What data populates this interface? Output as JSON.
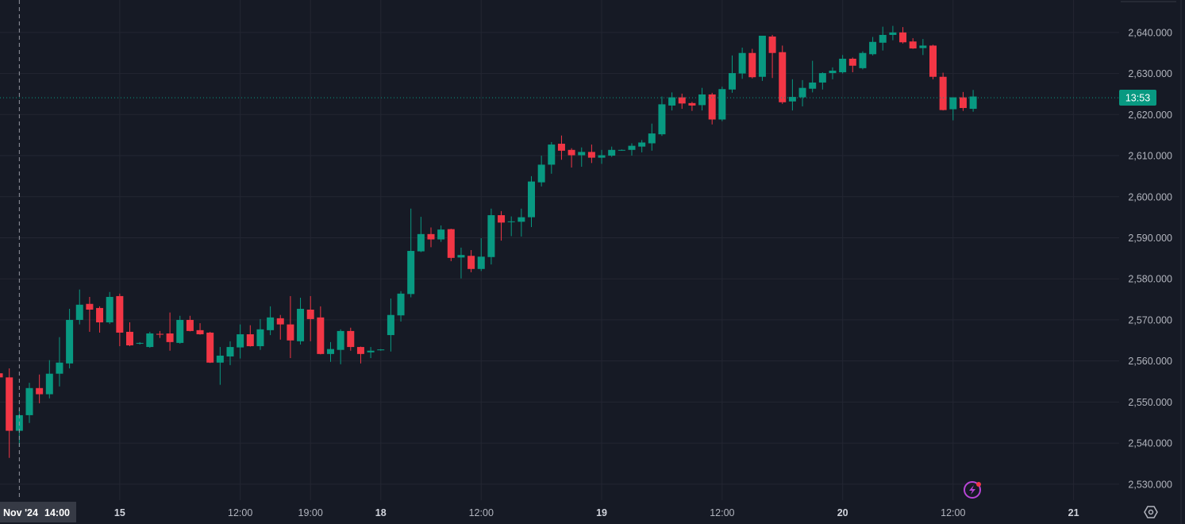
{
  "chart_data": {
    "type": "candlestick",
    "title": "",
    "xlabel": "",
    "ylabel": "",
    "ylim": [
      2526.1,
      2647.9
    ],
    "grid": true,
    "interval": "1h",
    "colors": {
      "up": "#089981",
      "down": "#f23645",
      "grid": "#232632",
      "text": "#b2b5be",
      "background": "#161a25",
      "crosshair_label_bg": "#363a45",
      "alert_icon": "#b845d6",
      "alert_dot": "#f23645"
    },
    "fields": [
      "open",
      "high",
      "low",
      "close"
    ],
    "candles": [
      [
        2557,
        2558,
        2555,
        2556
      ],
      [
        2556,
        2558.2,
        2536.4,
        2543
      ],
      [
        2543,
        2548.4,
        2539.1,
        2546.8
      ],
      [
        2546.8,
        2554.7,
        2544.9,
        2553.4
      ],
      [
        2553.4,
        2556.7,
        2549.7,
        2551.9
      ],
      [
        2551.9,
        2560.2,
        2550.9,
        2556.9
      ],
      [
        2556.9,
        2565.8,
        2553.8,
        2559.6
      ],
      [
        2559.4,
        2572.7,
        2558.2,
        2570
      ],
      [
        2570,
        2577.4,
        2568.9,
        2573.7
      ],
      [
        2573.9,
        2575.6,
        2567.1,
        2572.5
      ],
      [
        2572.9,
        2573.3,
        2566.9,
        2569.4
      ],
      [
        2569.4,
        2576.8,
        2569,
        2575.6
      ],
      [
        2575.8,
        2576.4,
        2563.6,
        2566.9
      ],
      [
        2567.1,
        2569.4,
        2563.6,
        2563.8
      ],
      [
        2564.2,
        2564.6,
        2564,
        2564.4
      ],
      [
        2563.4,
        2567.1,
        2563.2,
        2566.7
      ],
      [
        2566.6,
        2567.3,
        2565.6,
        2566.4
      ],
      [
        2566.7,
        2571.8,
        2562.5,
        2564.6
      ],
      [
        2564.4,
        2571,
        2564.2,
        2570
      ],
      [
        2570,
        2571,
        2567.2,
        2567.3
      ],
      [
        2567.5,
        2569.2,
        2566.4,
        2566.5
      ],
      [
        2566.9,
        2567.1,
        2559.5,
        2559.6
      ],
      [
        2559.6,
        2563.4,
        2554.2,
        2561.3
      ],
      [
        2561.1,
        2564.8,
        2559,
        2563.4
      ],
      [
        2563.3,
        2568.9,
        2560.6,
        2566.5
      ],
      [
        2566.5,
        2568.7,
        2563.5,
        2563.6
      ],
      [
        2563.6,
        2570.2,
        2562.7,
        2567.7
      ],
      [
        2567.5,
        2573.3,
        2566.3,
        2570.6
      ],
      [
        2570.4,
        2571.2,
        2565.2,
        2568.9
      ],
      [
        2568.9,
        2575.8,
        2560.7,
        2565
      ],
      [
        2564.8,
        2575.4,
        2564,
        2572.7
      ],
      [
        2572.5,
        2575.8,
        2564.8,
        2570.2
      ],
      [
        2570.6,
        2573.3,
        2561.6,
        2561.7
      ],
      [
        2561.7,
        2564.6,
        2559.8,
        2562.9
      ],
      [
        2562.7,
        2567.7,
        2559.2,
        2567.3
      ],
      [
        2567.3,
        2568.1,
        2562.5,
        2563.4
      ],
      [
        2563.4,
        2563.5,
        2559.4,
        2561.7
      ],
      [
        2562.1,
        2563.4,
        2560.7,
        2562.5
      ],
      [
        2562.6,
        2562.9,
        2562.5,
        2562.8
      ],
      [
        2566.3,
        2575.2,
        2562.3,
        2571.2
      ],
      [
        2571.1,
        2577,
        2569.6,
        2576.4
      ],
      [
        2576.3,
        2597.1,
        2575.5,
        2586.8
      ],
      [
        2586.7,
        2595.1,
        2586.5,
        2590.9
      ],
      [
        2590.9,
        2592.5,
        2587.7,
        2589.6
      ],
      [
        2589.6,
        2593,
        2589,
        2592
      ],
      [
        2592.1,
        2592.2,
        2584.3,
        2585.1
      ],
      [
        2585.2,
        2587.6,
        2580.1,
        2585.8
      ],
      [
        2585.6,
        2587,
        2581.6,
        2582.4
      ],
      [
        2582.4,
        2589.9,
        2581.9,
        2585.4
      ],
      [
        2585.3,
        2597.1,
        2583.5,
        2595.5
      ],
      [
        2595.5,
        2596.5,
        2589.3,
        2593.7
      ],
      [
        2593.8,
        2595.2,
        2590.4,
        2594
      ],
      [
        2593.9,
        2597.1,
        2590.3,
        2595
      ],
      [
        2595,
        2605,
        2592.6,
        2603.7
      ],
      [
        2603.5,
        2610,
        2602.5,
        2607.8
      ],
      [
        2607.8,
        2613.3,
        2605.6,
        2612.7
      ],
      [
        2612.9,
        2614.9,
        2609,
        2611.2
      ],
      [
        2611.4,
        2611.8,
        2607.1,
        2610.1
      ],
      [
        2610.1,
        2612,
        2607.3,
        2610.9
      ],
      [
        2610.9,
        2612.7,
        2608.2,
        2609.5
      ],
      [
        2609.5,
        2611.4,
        2608,
        2610.1
      ],
      [
        2610,
        2612.2,
        2609.7,
        2611.4
      ],
      [
        2611.3,
        2611.5,
        2611.2,
        2611.4
      ],
      [
        2611.4,
        2613,
        2610,
        2612.4
      ],
      [
        2612.2,
        2613.8,
        2610.8,
        2613.2
      ],
      [
        2613,
        2617.8,
        2611.2,
        2615.4
      ],
      [
        2615.2,
        2624.4,
        2614.8,
        2622.5
      ],
      [
        2622.2,
        2625.4,
        2621,
        2624.2
      ],
      [
        2624.2,
        2625.1,
        2621.4,
        2622.7
      ],
      [
        2622.8,
        2623.1,
        2620.9,
        2622.2
      ],
      [
        2622.3,
        2626.5,
        2621,
        2624.9
      ],
      [
        2624.9,
        2625.3,
        2617.6,
        2618.8
      ],
      [
        2618.8,
        2626.8,
        2618.4,
        2626.2
      ],
      [
        2626.1,
        2634.4,
        2625.3,
        2630.1
      ],
      [
        2630,
        2636.3,
        2628.7,
        2635
      ],
      [
        2635,
        2636,
        2628.8,
        2629.1
      ],
      [
        2629.2,
        2639.2,
        2628.2,
        2639.2
      ],
      [
        2639,
        2639.4,
        2628.9,
        2635
      ],
      [
        2635.2,
        2636.8,
        2622.6,
        2623
      ],
      [
        2623.2,
        2628.6,
        2621,
        2624.3
      ],
      [
        2624.2,
        2628.4,
        2622,
        2626.5
      ],
      [
        2626.3,
        2633.1,
        2625.4,
        2627.8
      ],
      [
        2627.8,
        2630.3,
        2626.1,
        2630.1
      ],
      [
        2630.1,
        2631.5,
        2628.6,
        2630.7
      ],
      [
        2630.3,
        2634.5,
        2630,
        2633.6
      ],
      [
        2633.6,
        2633.9,
        2630.3,
        2631.9
      ],
      [
        2631.3,
        2635.4,
        2631,
        2635
      ],
      [
        2634.7,
        2638.9,
        2634.4,
        2637.7
      ],
      [
        2637.5,
        2641.4,
        2635.6,
        2639.4
      ],
      [
        2639.4,
        2641.6,
        2638.1,
        2640
      ],
      [
        2640,
        2641.3,
        2637.3,
        2637.6
      ],
      [
        2637.8,
        2638.6,
        2636,
        2636.1
      ],
      [
        2636.2,
        2638.4,
        2634.5,
        2636.8
      ],
      [
        2636.8,
        2637,
        2628.6,
        2629.2
      ],
      [
        2629.2,
        2630.2,
        2621,
        2621.1
      ],
      [
        2621.3,
        2624.2,
        2618.6,
        2624.2
      ],
      [
        2624.2,
        2625.5,
        2620.9,
        2621.6
      ],
      [
        2621.4,
        2626,
        2620.7,
        2624.4
      ]
    ],
    "y_ticks": [
      {
        "value": 2640,
        "label": "2,640.000"
      },
      {
        "value": 2630,
        "label": "2,630.000"
      },
      {
        "value": 2620,
        "label": "2,620.000"
      },
      {
        "value": 2610,
        "label": "2,610.000"
      },
      {
        "value": 2600,
        "label": "2,600.000"
      },
      {
        "value": 2590,
        "label": "2,590.000"
      },
      {
        "value": 2580,
        "label": "2,580.000"
      },
      {
        "value": 2570,
        "label": "2,570.000"
      },
      {
        "value": 2560,
        "label": "2,560.000"
      },
      {
        "value": 2550,
        "label": "2,550.000"
      },
      {
        "value": 2540,
        "label": "2,540.000"
      },
      {
        "value": 2530,
        "label": "2,530.000"
      }
    ],
    "x_ticks": [
      {
        "bar": 12,
        "label": "15",
        "day": true
      },
      {
        "bar": 24,
        "label": "12:00",
        "day": false
      },
      {
        "bar": 31,
        "label": "19:00",
        "day": false
      },
      {
        "bar": 38,
        "label": "18",
        "day": true
      },
      {
        "bar": 48,
        "label": "12:00",
        "day": false
      },
      {
        "bar": 60,
        "label": "19",
        "day": true
      },
      {
        "bar": 72,
        "label": "12:00",
        "day": false
      },
      {
        "bar": 84,
        "label": "20",
        "day": true
      },
      {
        "bar": 95,
        "label": "12:00",
        "day": false
      },
      {
        "bar": 107,
        "label": "21",
        "day": true
      }
    ],
    "crosshair": {
      "bar": 2,
      "date_label": "Nov '24",
      "time_label": "14:00"
    },
    "current_price": {
      "value": 2624.1,
      "countdown_label": "13:53"
    }
  },
  "icons": {
    "alert": "lightning-icon",
    "settings": "settings-hexagon-icon"
  }
}
